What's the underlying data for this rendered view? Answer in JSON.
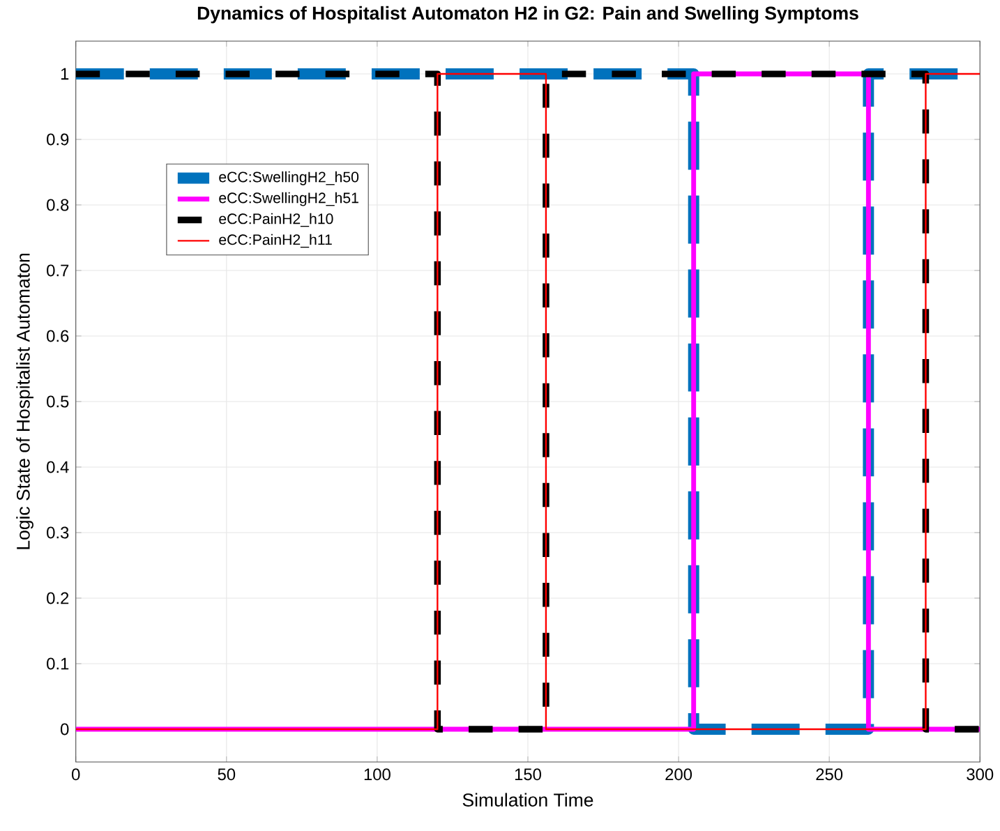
{
  "chart_data": {
    "type": "step",
    "title": "Dynamics of Hospitalist Automaton H2 in G2: Pain and Swelling Symptoms",
    "xlabel": "Simulation Time",
    "ylabel": "Logic State of Hospitalist Automaton",
    "xlim": [
      0,
      300
    ],
    "ylim": [
      -0.05,
      1.05
    ],
    "xticks": [
      0,
      50,
      100,
      150,
      200,
      250,
      300
    ],
    "yticks": [
      0,
      0.1,
      0.2,
      0.3,
      0.4,
      0.5,
      0.6,
      0.7,
      0.8,
      0.9,
      1
    ],
    "grid": true,
    "legend": "top left",
    "series": [
      {
        "name": "eCC:SwellingH2_h50",
        "color": "#0072bd",
        "line_style": "dashed",
        "x": [
          0,
          205,
          263,
          300
        ],
        "values": [
          1,
          0,
          1,
          1
        ]
      },
      {
        "name": "eCC:SwellingH2_h51",
        "color": "#ff00ff",
        "line_style": "solid",
        "x": [
          0,
          205,
          263,
          300
        ],
        "values": [
          0,
          1,
          0,
          0
        ]
      },
      {
        "name": "eCC:PainH2_h10",
        "color": "#000000",
        "line_style": "dashed",
        "x": [
          0,
          120,
          156,
          282,
          300
        ],
        "values": [
          1,
          0,
          1,
          0,
          0
        ]
      },
      {
        "name": "eCC:PainH2_h11",
        "color": "#ff0000",
        "line_style": "solid",
        "x": [
          0,
          120,
          156,
          282,
          300
        ],
        "values": [
          0,
          1,
          0,
          1,
          1
        ]
      }
    ]
  }
}
